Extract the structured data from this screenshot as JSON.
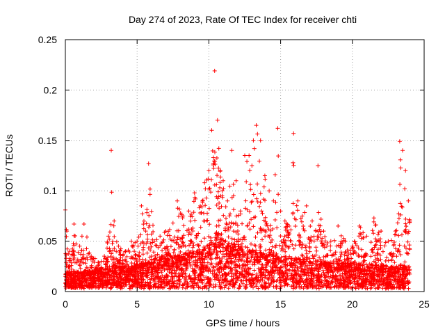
{
  "chart_data": {
    "type": "scatter",
    "title": "Day 274 of 2023, Rate Of TEC Index for receiver chti",
    "xlabel": "GPS time / hours",
    "ylabel": "ROTI / TECUs",
    "xlim": [
      0,
      25
    ],
    "ylim": [
      0,
      0.25
    ],
    "x_ticks": [
      "0",
      "5",
      "10",
      "15",
      "20",
      "25"
    ],
    "y_ticks": [
      "0",
      "0.05",
      "0.1",
      "0.15",
      "0.2",
      "0.25"
    ],
    "grid": true,
    "marker": "+",
    "color": "#ff0000",
    "envelope": {
      "x": [
        0,
        0.1,
        0.3,
        0.6,
        1.0,
        1.3,
        1.8,
        2.5,
        3.0,
        3.2,
        3.4,
        3.7,
        4.2,
        4.6,
        5.0,
        5.3,
        5.6,
        5.8,
        6.2,
        6.6,
        7.0,
        7.5,
        7.8,
        8.2,
        8.6,
        9.0,
        9.4,
        9.7,
        10.0,
        10.2,
        10.4,
        10.6,
        10.8,
        11.0,
        11.3,
        11.6,
        11.9,
        12.2,
        12.5,
        12.8,
        13.1,
        13.3,
        13.6,
        13.9,
        14.2,
        14.5,
        14.8,
        15.0,
        15.3,
        15.6,
        15.9,
        16.2,
        16.5,
        16.8,
        17.2,
        17.6,
        18.0,
        18.5,
        19.0,
        19.5,
        20.0,
        20.5,
        21.0,
        21.5,
        22.0,
        22.5,
        23.0,
        23.3,
        23.5,
        23.7,
        23.9,
        24.0
      ],
      "ymax": [
        0.081,
        0.06,
        0.04,
        0.067,
        0.045,
        0.067,
        0.035,
        0.03,
        0.055,
        0.14,
        0.07,
        0.045,
        0.04,
        0.05,
        0.05,
        0.085,
        0.06,
        0.127,
        0.05,
        0.055,
        0.06,
        0.068,
        0.09,
        0.075,
        0.08,
        0.098,
        0.085,
        0.108,
        0.12,
        0.16,
        0.219,
        0.17,
        0.12,
        0.11,
        0.09,
        0.14,
        0.11,
        0.08,
        0.135,
        0.135,
        0.15,
        0.165,
        0.15,
        0.115,
        0.1,
        0.09,
        0.162,
        0.08,
        0.07,
        0.065,
        0.157,
        0.09,
        0.075,
        0.085,
        0.07,
        0.125,
        0.06,
        0.05,
        0.065,
        0.05,
        0.045,
        0.065,
        0.055,
        0.073,
        0.06,
        0.05,
        0.06,
        0.149,
        0.14,
        0.12,
        0.09,
        0.07
      ],
      "base": [
        0.015,
        0.015,
        0.016,
        0.015,
        0.015,
        0.016,
        0.016,
        0.017,
        0.018,
        0.02,
        0.02,
        0.019,
        0.019,
        0.019,
        0.02,
        0.022,
        0.022,
        0.022,
        0.023,
        0.024,
        0.025,
        0.026,
        0.027,
        0.028,
        0.029,
        0.03,
        0.031,
        0.032,
        0.034,
        0.036,
        0.04,
        0.045,
        0.045,
        0.04,
        0.036,
        0.035,
        0.035,
        0.033,
        0.033,
        0.032,
        0.031,
        0.03,
        0.029,
        0.028,
        0.028,
        0.027,
        0.027,
        0.026,
        0.026,
        0.025,
        0.025,
        0.025,
        0.024,
        0.024,
        0.023,
        0.023,
        0.023,
        0.022,
        0.022,
        0.021,
        0.021,
        0.021,
        0.02,
        0.02,
        0.02,
        0.019,
        0.019,
        0.02,
        0.02,
        0.019,
        0.019,
        0.018
      ],
      "floor": 0.003,
      "points_per_hour": 170
    }
  }
}
